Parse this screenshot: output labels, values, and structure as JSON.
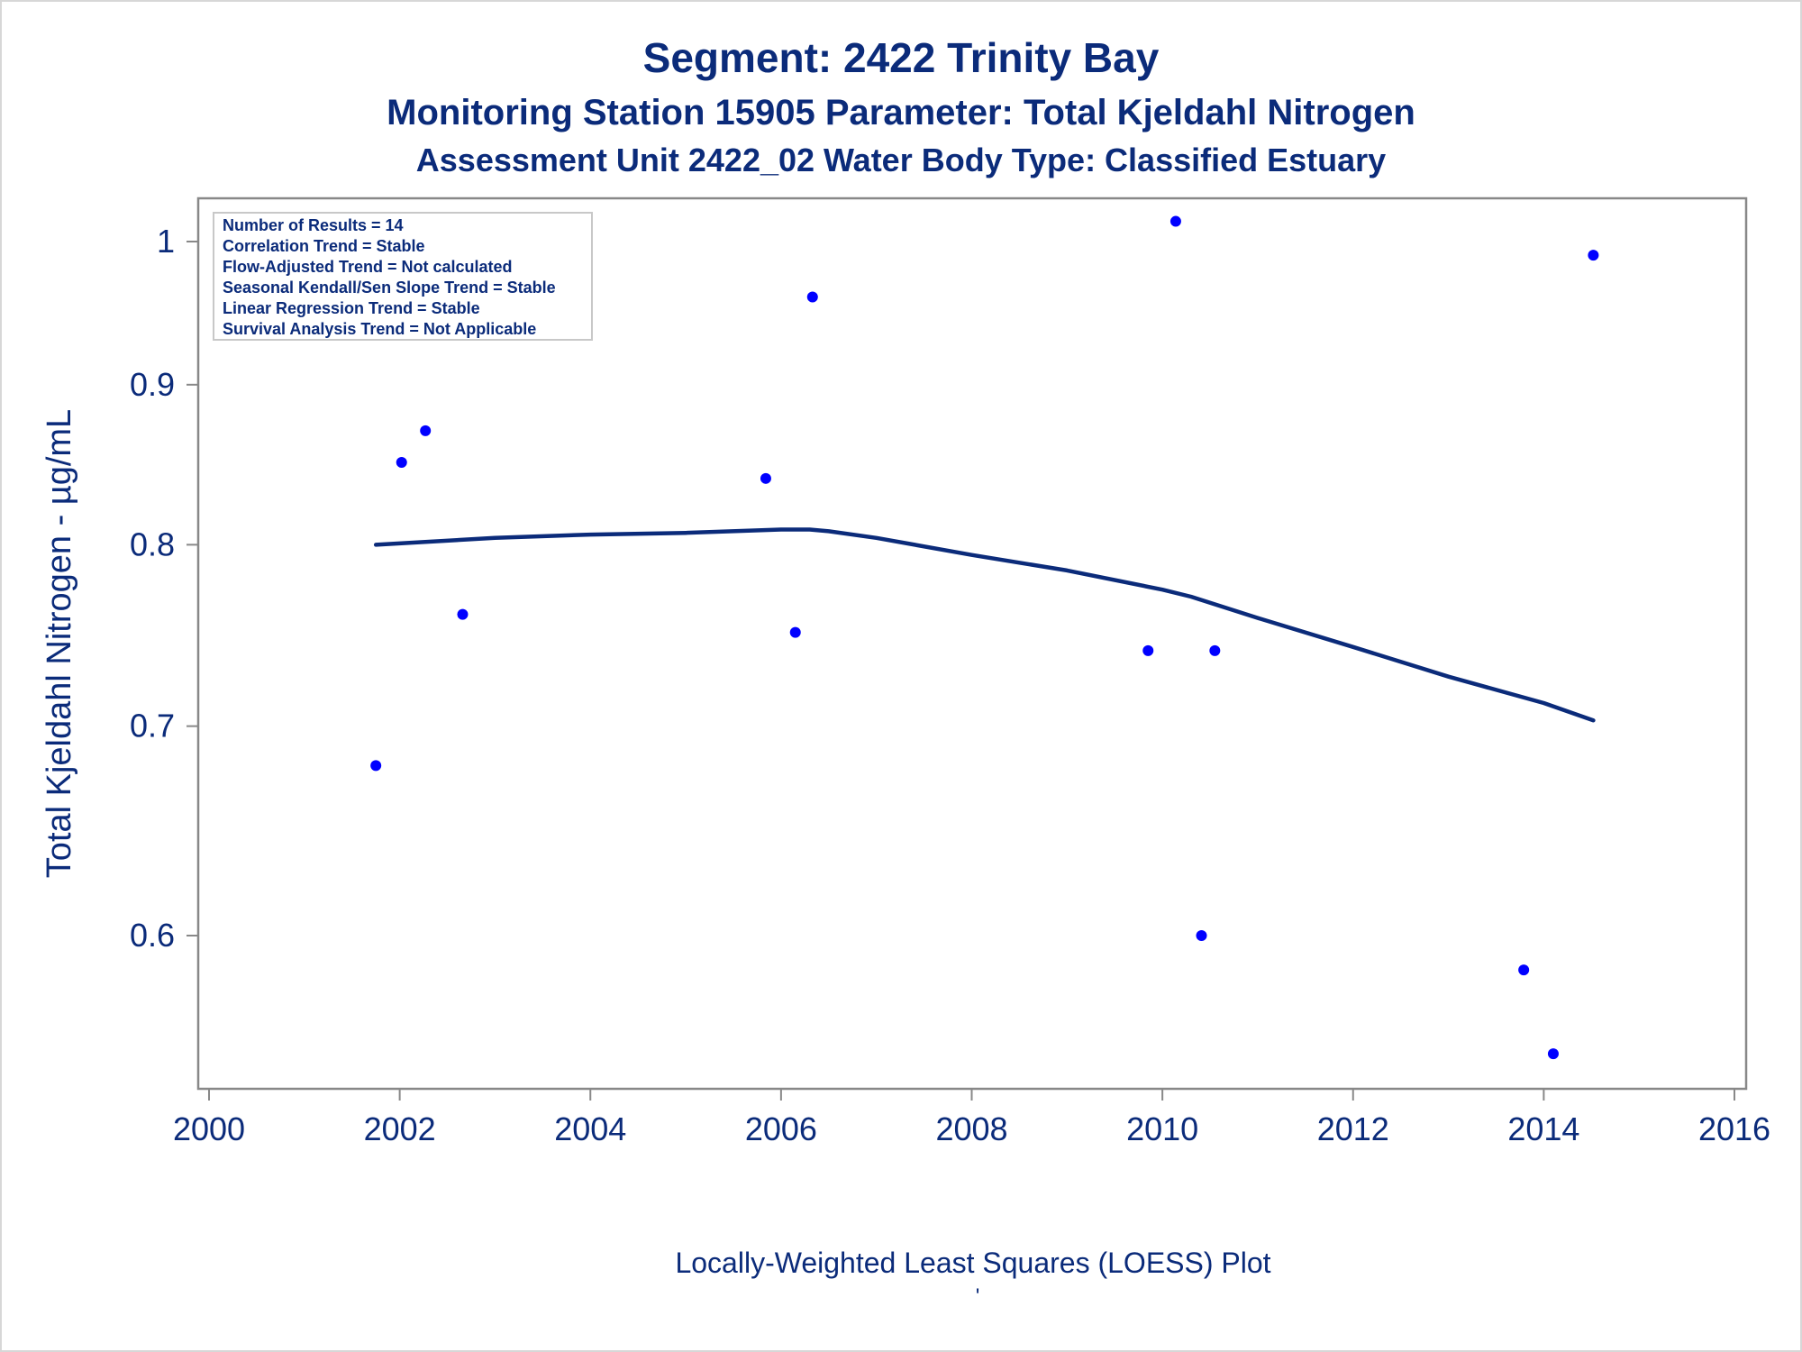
{
  "titles": {
    "line1": "Segment: 2422  Trinity Bay",
    "line2": "Monitoring Station 15905 Parameter: Total Kjeldahl Nitrogen",
    "line3": "Assessment Unit 2422_02   Water Body Type: Classified Estuary"
  },
  "annotations": [
    "Number of Results = 14",
    "Correlation Trend = Stable",
    "Flow-Adjusted Trend = Not calculated",
    "Seasonal Kendall/Sen Slope Trend = Stable",
    "Linear Regression Trend = Stable",
    "Survival Analysis Trend = Not Applicable"
  ],
  "footnote": {
    "caption": "Locally-Weighted Least Squares (LOESS) Plot",
    "mark": "'"
  },
  "colors": {
    "text": "#0b2b7a",
    "points": "#0000ff",
    "loess": "#0b2b7a",
    "axis": "#888888"
  },
  "chart_data": {
    "type": "scatter",
    "title": "Segment: 2422  Trinity Bay",
    "xlabel": "",
    "ylabel": "Total Kjeldahl Nitrogen -  µg/mL",
    "xlim": [
      2000,
      2016
    ],
    "ylim": [
      0.53,
      1.03
    ],
    "y_scale": "log",
    "xticks": [
      2000,
      2002,
      2004,
      2006,
      2008,
      2010,
      2012,
      2014,
      2016
    ],
    "yticks": [
      0.6,
      0.7,
      0.8,
      0.9,
      1
    ],
    "ytick_labels": [
      "0.6",
      "0.7",
      "0.8",
      "0.9",
      "1"
    ],
    "grid": false,
    "legend": "none",
    "series": [
      {
        "type": "scatter",
        "x": [
          2001.75,
          2002.02,
          2002.27,
          2002.66,
          2005.84,
          2006.15,
          2006.33,
          2009.85,
          2010.14,
          2010.41,
          2010.55,
          2013.79,
          2014.1,
          2014.52
        ],
        "y": [
          0.68,
          0.85,
          0.87,
          0.76,
          0.84,
          0.75,
          0.96,
          0.74,
          1.015,
          0.6,
          0.74,
          0.585,
          0.55,
          0.99
        ]
      },
      {
        "type": "line",
        "x": [
          2001.75,
          2003,
          2004,
          2005,
          2006,
          2006.3,
          2006.5,
          2007,
          2008,
          2009,
          2010,
          2010.3,
          2011,
          2012,
          2013,
          2014,
          2014.52
        ],
        "y": [
          0.8,
          0.804,
          0.806,
          0.807,
          0.809,
          0.809,
          0.808,
          0.804,
          0.794,
          0.785,
          0.774,
          0.77,
          0.758,
          0.742,
          0.726,
          0.712,
          0.703
        ]
      }
    ]
  }
}
